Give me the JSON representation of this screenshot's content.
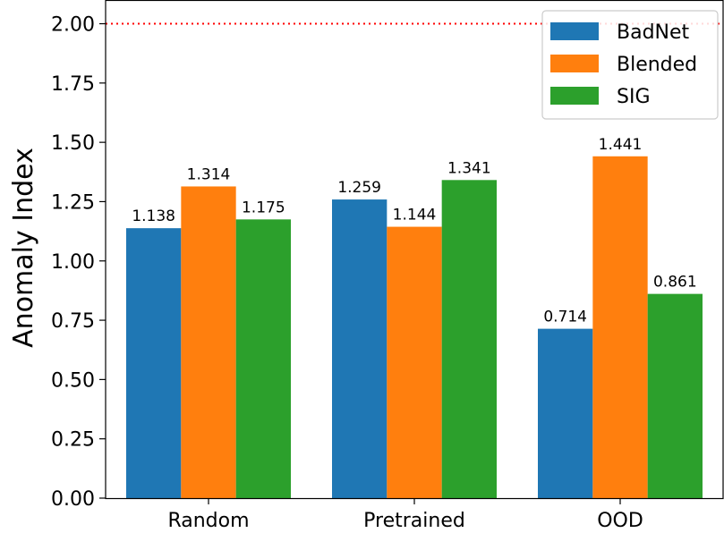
{
  "chart_data": {
    "type": "bar",
    "title": "",
    "xlabel": "",
    "ylabel": "Anomaly Index",
    "categories": [
      "Random",
      "Pretrained",
      "OOD"
    ],
    "series": [
      {
        "name": "BadNet",
        "color": "#1f77b4",
        "values": [
          1.138,
          1.259,
          0.714
        ],
        "labels": [
          "1.138",
          "1.259",
          "0.714"
        ]
      },
      {
        "name": "Blended",
        "color": "#ff7f0e",
        "values": [
          1.314,
          1.144,
          1.441
        ],
        "labels": [
          "1.314",
          "1.144",
          "1.441"
        ]
      },
      {
        "name": "SIG",
        "color": "#2ca02c",
        "values": [
          1.175,
          1.341,
          0.861
        ],
        "labels": [
          "1.175",
          "1.341",
          "0.861"
        ]
      }
    ],
    "ylim": [
      0,
      2.1
    ],
    "yticks": [
      "0.00",
      "0.25",
      "0.50",
      "0.75",
      "1.00",
      "1.25",
      "1.50",
      "1.75",
      "2.00"
    ],
    "threshold": {
      "value": 2.0,
      "color": "#ff0000",
      "style": "dotted"
    },
    "legend": {
      "position": "top-right"
    },
    "grid": false
  }
}
